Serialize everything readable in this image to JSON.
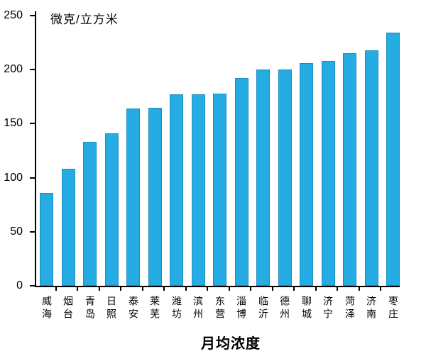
{
  "chart_data": {
    "type": "bar",
    "title": "微克/立方米",
    "xlabel": "月均浓度",
    "ylabel": "微克/立方米",
    "categories": [
      "威海",
      "烟台",
      "青岛",
      "日照",
      "泰安",
      "莱芜",
      "潍坊",
      "滨州",
      "东营",
      "淄博",
      "临沂",
      "德州",
      "聊城",
      "济宁",
      "菏泽",
      "济南",
      "枣庄"
    ],
    "values": [
      86,
      108,
      133,
      141,
      164,
      165,
      177,
      177,
      178,
      192,
      200,
      200,
      206,
      208,
      215,
      218,
      234
    ],
    "ylim": [
      0,
      250
    ],
    "y_ticks": [
      0,
      50,
      100,
      150,
      200,
      250
    ],
    "bar_color": "#24ACE3",
    "axis_color": "#000000",
    "grid": false,
    "legend_position": "none"
  }
}
